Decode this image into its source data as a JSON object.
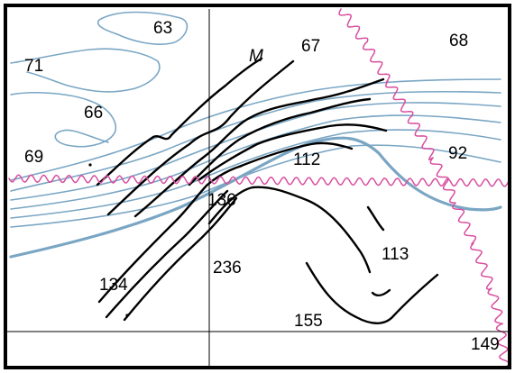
{
  "colors": {
    "contour": "#7aa6c4",
    "bathymetry": "#000000",
    "boundary": "#d94fa0",
    "frame": "#000000",
    "background": "#ffffff"
  },
  "labels": {
    "l63": "63",
    "l67": "67",
    "l68": "68",
    "l71": "71",
    "l66": "66",
    "l69": "69",
    "l92": "92",
    "l112": "112",
    "l136": "136",
    "l236": "236",
    "l113": "113",
    "l134": "134",
    "l155": "155",
    "l149": "149",
    "m": "M"
  }
}
